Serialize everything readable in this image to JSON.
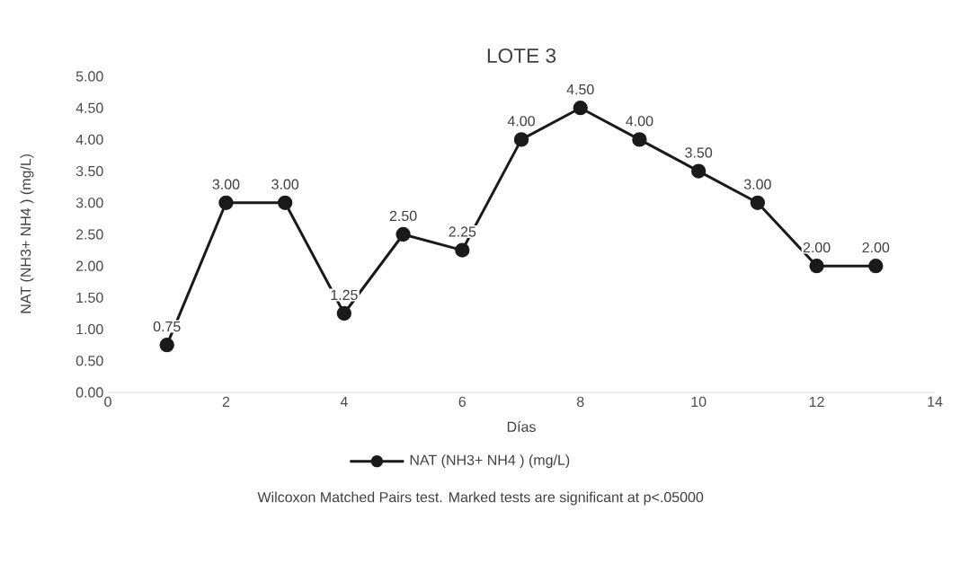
{
  "chart_data": {
    "type": "line",
    "title": "LOTE 3",
    "xlabel": "Días",
    "ylabel": "NAT (NH3+ NH4  ) (mg/L)",
    "x": [
      1,
      2,
      3,
      4,
      5,
      6,
      7,
      8,
      9,
      10,
      11,
      12,
      13
    ],
    "series": [
      {
        "name": "NAT (NH3+ NH4  ) (mg/L)",
        "color": "#1a1a1a",
        "values": [
          0.75,
          3.0,
          3.0,
          1.25,
          2.5,
          2.25,
          4.0,
          4.5,
          4.0,
          3.5,
          3.0,
          2.0,
          2.0
        ],
        "value_labels": [
          "0.75",
          "3.00",
          "3.00",
          "1.25",
          "2.50",
          "2.25",
          "4.00",
          "4.50",
          "4.00",
          "3.50",
          "3.00",
          "2.00",
          "2.00"
        ]
      }
    ],
    "xlim": [
      0,
      14
    ],
    "xticks": [
      0,
      2,
      4,
      6,
      8,
      10,
      12,
      14
    ],
    "ylim": [
      0,
      5
    ],
    "yticks": [
      {
        "value": 0,
        "label": "0.00"
      },
      {
        "value": 0.5,
        "label": "0.50"
      },
      {
        "value": 1,
        "label": "1.00"
      },
      {
        "value": 1.5,
        "label": "1.50"
      },
      {
        "value": 2,
        "label": "2.00"
      },
      {
        "value": 2.5,
        "label": "2.50"
      },
      {
        "value": 3,
        "label": "3.00"
      },
      {
        "value": 3.5,
        "label": "3.50"
      },
      {
        "value": 4,
        "label": "4.00"
      },
      {
        "value": 4.5,
        "label": "4.50"
      },
      {
        "value": 5,
        "label": "5.00"
      }
    ],
    "marker": "circle",
    "line_style": "solid",
    "grid": false,
    "legend": "bottom",
    "annotations": [
      "Wilcoxon Matched Pairs test. Marked tests are significant at p<.05000"
    ]
  }
}
